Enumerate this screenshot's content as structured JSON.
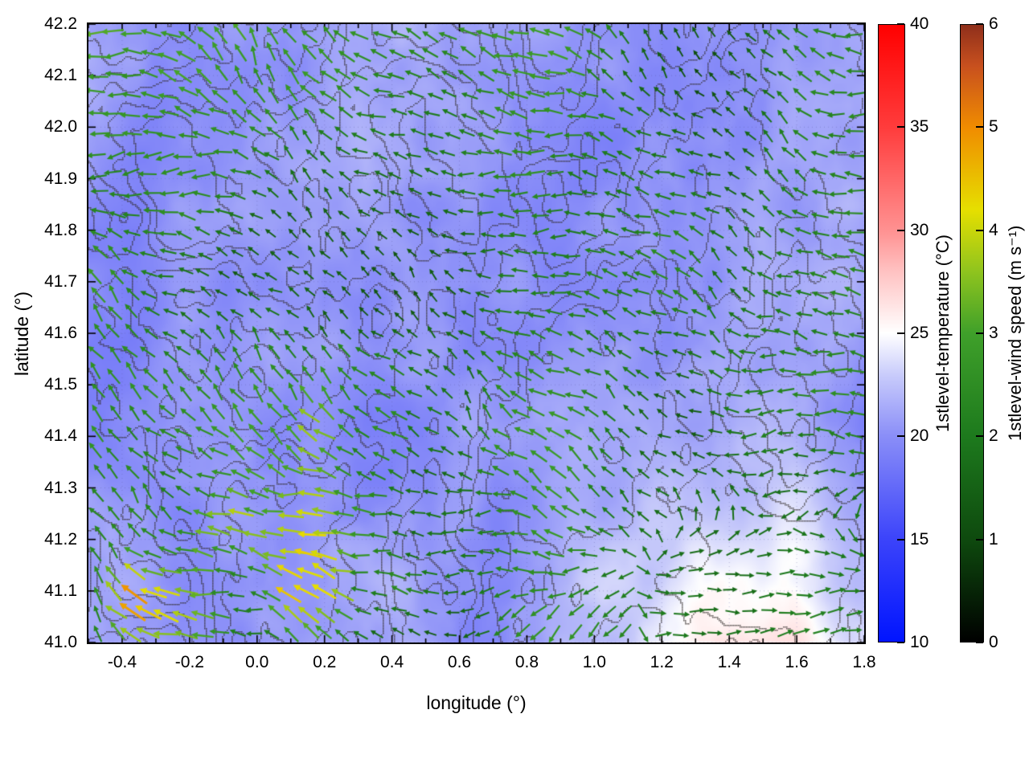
{
  "chart_data": {
    "type": "vector_field_map",
    "title": "",
    "xlabel": "longitude (°)",
    "ylabel": "latitude (°)",
    "xlim": [
      -0.5,
      1.8
    ],
    "ylim": [
      41.0,
      42.2
    ],
    "xtick_labels": [
      "-0.4",
      "-0.2",
      "0.0",
      "0.2",
      "0.4",
      "0.6",
      "0.8",
      "1.0",
      "1.2",
      "1.4",
      "1.6",
      "1.8"
    ],
    "ytick_labels": [
      "41.0",
      "41.1",
      "41.2",
      "41.3",
      "41.4",
      "41.5",
      "41.6",
      "41.7",
      "41.8",
      "41.9",
      "42.0",
      "42.1",
      "42.2"
    ],
    "grid": {
      "show": true,
      "style": "dotted"
    },
    "background_field": {
      "label": "1stlevel-temperature (°C)",
      "range": [
        10,
        40
      ],
      "tick_labels": [
        "10",
        "15",
        "20",
        "25",
        "30",
        "35",
        "40"
      ],
      "colormap": [
        {
          "v": 10,
          "c": "#0014ff"
        },
        {
          "v": 15,
          "c": "#3c44fa"
        },
        {
          "v": 20,
          "c": "#8a8ef8"
        },
        {
          "v": 23,
          "c": "#c9ccfb"
        },
        {
          "v": 25,
          "c": "#ffffff"
        },
        {
          "v": 28,
          "c": "#ffc2c2"
        },
        {
          "v": 30,
          "c": "#ff9191"
        },
        {
          "v": 35,
          "c": "#ff3c3c"
        },
        {
          "v": 40,
          "c": "#ff0000"
        }
      ],
      "field_value_range_on_map": [
        16,
        25
      ]
    },
    "vector_field": {
      "label": "1stlevel-wind speed (m s⁻¹)",
      "range": [
        0,
        6
      ],
      "tick_labels": [
        "0",
        "1",
        "2",
        "3",
        "4",
        "5",
        "6"
      ],
      "colormap": [
        {
          "v": 0,
          "c": "#000000"
        },
        {
          "v": 1,
          "c": "#0e4a0e"
        },
        {
          "v": 2,
          "c": "#1d7a1d"
        },
        {
          "v": 3,
          "c": "#3fa02a"
        },
        {
          "v": 3.6,
          "c": "#8fc41e"
        },
        {
          "v": 4.2,
          "c": "#e6df00"
        },
        {
          "v": 5,
          "c": "#f08c00"
        },
        {
          "v": 5.6,
          "c": "#c8501e"
        },
        {
          "v": 6,
          "c": "#8f2f1b"
        }
      ],
      "grid_nx": 44,
      "grid_ny": 31,
      "seed": 1337,
      "flow_description": "predominantly westward (left-pointing) arrows; strong yellow-orange-red high-speed patches (4-6 m/s) in the southwest quadrant between lat 41.0-41.65 and lon -0.5-0.6; weak eastward green flow in the southeast corner; green 1-3 m/s arrows elsewhere with scattered near-zero black arrows"
    },
    "contours": {
      "show": true,
      "color": "#32302a",
      "levels": [
        0.38,
        0.46,
        0.54,
        0.62,
        0.7
      ]
    }
  }
}
